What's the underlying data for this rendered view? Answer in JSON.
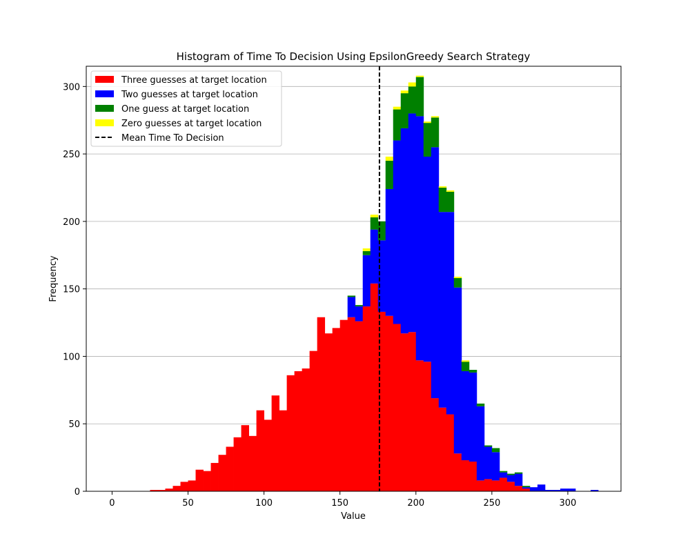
{
  "chart_data": {
    "type": "bar",
    "subtype": "stacked-histogram",
    "title": "Histogram of Time To Decision Using EpsilonGreedy Search Strategy",
    "xlabel": "Value",
    "ylabel": "Frequency",
    "xlim": [
      -17,
      335
    ],
    "ylim": [
      0,
      315
    ],
    "xticks": [
      0,
      50,
      100,
      150,
      200,
      250,
      300
    ],
    "yticks": [
      0,
      50,
      100,
      150,
      200,
      250,
      300
    ],
    "grid": "horizontal",
    "legend_position": "upper-left",
    "bin_width": 5,
    "bin_start": 0,
    "mean": 176,
    "series": [
      {
        "name": "Three guesses at target location",
        "color": "#ff0000",
        "values": [
          0,
          0,
          0,
          0,
          0,
          1,
          1,
          2,
          4,
          7,
          8,
          16,
          15,
          21,
          27,
          33,
          40,
          49,
          41,
          60,
          53,
          71,
          60,
          86,
          89,
          91,
          104,
          129,
          117,
          121,
          127,
          129,
          126,
          137,
          154,
          133,
          130,
          124,
          117,
          118,
          97,
          96,
          69,
          62,
          57,
          28,
          23,
          22,
          8,
          9,
          8,
          10,
          7,
          4,
          2,
          0,
          0,
          0,
          0,
          0,
          0,
          0,
          0,
          0,
          0
        ]
      },
      {
        "name": "Two guesses at target location",
        "color": "#0000ff",
        "values": [
          0,
          0,
          0,
          0,
          0,
          0,
          0,
          0,
          0,
          0,
          0,
          0,
          0,
          0,
          0,
          0,
          0,
          0,
          0,
          0,
          0,
          0,
          0,
          0,
          0,
          0,
          0,
          0,
          0,
          0,
          0,
          15,
          11,
          38,
          40,
          53,
          94,
          136,
          152,
          162,
          181,
          152,
          186,
          145,
          150,
          123,
          66,
          66,
          55,
          24,
          21,
          4,
          5,
          9,
          1,
          3,
          5,
          1,
          1,
          2,
          2,
          0,
          0,
          1,
          0
        ]
      },
      {
        "name": "One guess at target location",
        "color": "#008000",
        "values": [
          0,
          0,
          0,
          0,
          0,
          0,
          0,
          0,
          0,
          0,
          0,
          0,
          0,
          0,
          0,
          0,
          0,
          0,
          0,
          0,
          0,
          0,
          0,
          0,
          0,
          0,
          0,
          0,
          0,
          0,
          0,
          1,
          1,
          3,
          9,
          14,
          21,
          23,
          26,
          20,
          29,
          25,
          22,
          18,
          15,
          7,
          7,
          2,
          2,
          1,
          3,
          1,
          1,
          1,
          1,
          0,
          0,
          0,
          0,
          0,
          0,
          0,
          0,
          0,
          0
        ]
      },
      {
        "name": "Zero guesses at target location",
        "color": "#ffff00",
        "values": [
          0,
          0,
          0,
          0,
          0,
          0,
          0,
          0,
          0,
          0,
          0,
          0,
          0,
          0,
          0,
          0,
          0,
          0,
          0,
          0,
          0,
          0,
          0,
          0,
          0,
          0,
          0,
          0,
          0,
          0,
          0,
          0,
          0,
          2,
          2,
          0,
          3,
          2,
          2,
          3,
          1,
          1,
          1,
          1,
          1,
          1,
          1,
          0,
          0,
          0,
          0,
          0,
          0,
          0,
          0,
          0,
          0,
          0,
          0,
          0,
          0,
          0,
          0,
          0,
          0
        ]
      }
    ],
    "reference_line": {
      "name": "Mean Time To Decision",
      "color": "#000000",
      "style": "dashed"
    }
  }
}
